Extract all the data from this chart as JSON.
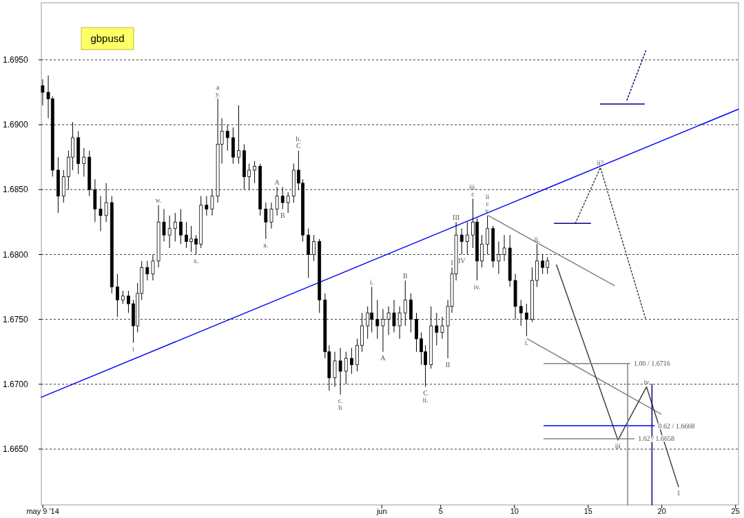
{
  "chart_data": {
    "type": "candlestick",
    "title": "gbpusd",
    "color": "#000000",
    "grid": "y",
    "xlim": [
      -22.1,
      25.2
    ],
    "ylim": [
      1.6607,
      1.6994
    ],
    "xticks": [
      {
        "value": -22,
        "label": "may 9 '14"
      },
      {
        "value": 1,
        "label": "jun"
      },
      5,
      10,
      15,
      20,
      25
    ],
    "yticks": [
      {
        "value": 1.665,
        "label": "1.6650"
      },
      {
        "value": 1.67,
        "label": "1.6700"
      },
      {
        "value": 1.675,
        "label": "1.6750"
      },
      {
        "value": 1.68,
        "label": "1.6800"
      },
      {
        "value": 1.685,
        "label": "1.6850"
      },
      {
        "value": 1.69,
        "label": "1.6900"
      },
      {
        "value": 1.695,
        "label": "1.6950"
      }
    ],
    "x": [
      -22.01,
      -21.63,
      -21.34,
      -20.96,
      -20.59,
      -20.26,
      -19.97,
      -19.59,
      -19.21,
      -18.84,
      -18.46,
      -18.08,
      -17.7,
      -17.32,
      -16.94,
      -16.57,
      -16.19,
      -15.86,
      -15.57,
      -15.29,
      -14.91,
      -14.53,
      -14.15,
      -13.78,
      -13.4,
      -13.02,
      -12.64,
      -12.26,
      -11.93,
      -11.6,
      -11.27,
      -10.89,
      -10.51,
      -10.13,
      -9.85,
      -9.47,
      -9.09,
      -8.71,
      -8.34,
      -8.0,
      -7.63,
      -7.25,
      -6.87,
      -6.49,
      -6.11,
      -5.73,
      -5.36,
      -4.98,
      -4.65,
      -4.36,
      -3.98,
      -3.61,
      -3.23,
      -2.85,
      -2.57,
      -2.19,
      -1.81,
      -1.43,
      -1.05,
      -0.67,
      -0.34,
      0.04,
      0.32,
      0.7,
      1.08,
      1.46,
      1.83,
      2.21,
      2.59,
      2.97,
      3.35,
      3.68,
      3.96,
      4.34,
      4.72,
      5.1,
      5.48,
      5.76,
      6.04,
      6.42,
      6.8,
      7.18,
      7.46,
      7.79,
      8.17,
      8.55,
      8.93,
      9.31,
      9.69,
      10.06,
      10.44,
      10.82,
      11.2,
      11.53,
      11.91,
      12.24
    ],
    "ohlc": [
      [
        1.693,
        1.6935,
        1.6915,
        1.6925
      ],
      [
        1.6925,
        1.6938,
        1.6905,
        1.692
      ],
      [
        1.692,
        1.6922,
        1.686,
        1.6865
      ],
      [
        1.6865,
        1.6875,
        1.6832,
        1.6845
      ],
      [
        1.6845,
        1.6865,
        1.684,
        1.686
      ],
      [
        1.686,
        1.688,
        1.685,
        1.6875
      ],
      [
        1.6875,
        1.6902,
        1.6865,
        1.689
      ],
      [
        1.689,
        1.6895,
        1.6862,
        1.687
      ],
      [
        1.687,
        1.6882,
        1.686,
        1.6875
      ],
      [
        1.6875,
        1.688,
        1.6845,
        1.685
      ],
      [
        1.685,
        1.6858,
        1.6825,
        1.6835
      ],
      [
        1.6835,
        1.6845,
        1.6818,
        1.683
      ],
      [
        1.683,
        1.6855,
        1.6825,
        1.684
      ],
      [
        1.684,
        1.6845,
        1.677,
        1.6775
      ],
      [
        1.6775,
        1.6785,
        1.6752,
        1.6765
      ],
      [
        1.6765,
        1.6772,
        1.6762,
        1.6768
      ],
      [
        1.6768,
        1.6772,
        1.6755,
        1.6762
      ],
      [
        1.6762,
        1.6765,
        1.6732,
        1.6745
      ],
      [
        1.6745,
        1.6778,
        1.674,
        1.677
      ],
      [
        1.677,
        1.6795,
        1.6765,
        1.679
      ],
      [
        1.679,
        1.6795,
        1.678,
        1.6785
      ],
      [
        1.6785,
        1.68,
        1.678,
        1.6795
      ],
      [
        1.6795,
        1.6838,
        1.679,
        1.6825
      ],
      [
        1.6825,
        1.6835,
        1.681,
        1.6815
      ],
      [
        1.6815,
        1.683,
        1.6805,
        1.682
      ],
      [
        1.682,
        1.6832,
        1.681,
        1.6825
      ],
      [
        1.6825,
        1.6835,
        1.6808,
        1.6815
      ],
      [
        1.6815,
        1.6825,
        1.6805,
        1.681
      ],
      [
        1.681,
        1.6822,
        1.6802,
        1.6812
      ],
      [
        1.6812,
        1.6815,
        1.68,
        1.6808
      ],
      [
        1.6808,
        1.6845,
        1.6805,
        1.6838
      ],
      [
        1.6838,
        1.6845,
        1.683,
        1.6835
      ],
      [
        1.6835,
        1.685,
        1.683,
        1.6845
      ],
      [
        1.6845,
        1.692,
        1.684,
        1.6885
      ],
      [
        1.6885,
        1.6905,
        1.687,
        1.6895
      ],
      [
        1.6895,
        1.69,
        1.688,
        1.689
      ],
      [
        1.689,
        1.6898,
        1.687,
        1.6875
      ],
      [
        1.6875,
        1.6915,
        1.687,
        1.688
      ],
      [
        1.688,
        1.6885,
        1.685,
        1.686
      ],
      [
        1.686,
        1.687,
        1.685,
        1.6865
      ],
      [
        1.6865,
        1.6872,
        1.6855,
        1.6868
      ],
      [
        1.6868,
        1.687,
        1.683,
        1.6835
      ],
      [
        1.6835,
        1.684,
        1.6812,
        1.6825
      ],
      [
        1.6825,
        1.684,
        1.682,
        1.6835
      ],
      [
        1.6835,
        1.6852,
        1.683,
        1.6845
      ],
      [
        1.6845,
        1.6852,
        1.6835,
        1.684
      ],
      [
        1.684,
        1.6848,
        1.6832,
        1.6845
      ],
      [
        1.6845,
        1.687,
        1.684,
        1.6865
      ],
      [
        1.6865,
        1.688,
        1.685,
        1.6855
      ],
      [
        1.6855,
        1.6858,
        1.681,
        1.6815
      ],
      [
        1.6815,
        1.682,
        1.6782,
        1.68
      ],
      [
        1.68,
        1.6815,
        1.6795,
        1.681
      ],
      [
        1.681,
        1.6812,
        1.6755,
        1.6765
      ],
      [
        1.6765,
        1.677,
        1.672,
        1.6725
      ],
      [
        1.6725,
        1.673,
        1.6695,
        1.6705
      ],
      [
        1.6705,
        1.6725,
        1.6698,
        1.6718
      ],
      [
        1.6718,
        1.6728,
        1.6692,
        1.671
      ],
      [
        1.671,
        1.6725,
        1.67,
        1.672
      ],
      [
        1.672,
        1.6728,
        1.6708,
        1.6715
      ],
      [
        1.6715,
        1.6735,
        1.671,
        1.673
      ],
      [
        1.673,
        1.6755,
        1.6725,
        1.6745
      ],
      [
        1.6745,
        1.676,
        1.6735,
        1.6755
      ],
      [
        1.6755,
        1.6775,
        1.674,
        1.675
      ],
      [
        1.675,
        1.6765,
        1.6735,
        1.6745
      ],
      [
        1.6745,
        1.6758,
        1.6725,
        1.675
      ],
      [
        1.675,
        1.676,
        1.6738,
        1.6755
      ],
      [
        1.6755,
        1.6765,
        1.674,
        1.6745
      ],
      [
        1.6745,
        1.676,
        1.6735,
        1.6755
      ],
      [
        1.6755,
        1.678,
        1.6745,
        1.6765
      ],
      [
        1.6765,
        1.677,
        1.674,
        1.675
      ],
      [
        1.675,
        1.6755,
        1.6725,
        1.6735
      ],
      [
        1.6735,
        1.674,
        1.6715,
        1.6725
      ],
      [
        1.6725,
        1.673,
        1.6698,
        1.6715
      ],
      [
        1.6715,
        1.676,
        1.6712,
        1.6745
      ],
      [
        1.6745,
        1.6755,
        1.673,
        1.674
      ],
      [
        1.674,
        1.6752,
        1.6735,
        1.6745
      ],
      [
        1.6745,
        1.6765,
        1.672,
        1.676
      ],
      [
        1.676,
        1.679,
        1.6755,
        1.6785
      ],
      [
        1.6785,
        1.6825,
        1.678,
        1.6815
      ],
      [
        1.6815,
        1.682,
        1.68,
        1.681
      ],
      [
        1.681,
        1.6825,
        1.68,
        1.6815
      ],
      [
        1.6815,
        1.6843,
        1.6805,
        1.6825
      ],
      [
        1.6825,
        1.6828,
        1.678,
        1.6795
      ],
      [
        1.6795,
        1.6815,
        1.679,
        1.6808
      ],
      [
        1.6808,
        1.683,
        1.68,
        1.682
      ],
      [
        1.682,
        1.6822,
        1.679,
        1.6795
      ],
      [
        1.6795,
        1.681,
        1.6785,
        1.68
      ],
      [
        1.68,
        1.6815,
        1.6795,
        1.6805
      ],
      [
        1.6805,
        1.6815,
        1.6775,
        1.678
      ],
      [
        1.678,
        1.6785,
        1.675,
        1.676
      ],
      [
        1.676,
        1.6765,
        1.6745,
        1.6755
      ],
      [
        1.6755,
        1.6762,
        1.6737,
        1.675
      ],
      [
        1.675,
        1.679,
        1.6748,
        1.678
      ],
      [
        1.678,
        1.6808,
        1.6775,
        1.6795
      ],
      [
        1.6795,
        1.68,
        1.6785,
        1.679
      ],
      [
        1.679,
        1.6798,
        1.6785,
        1.6795
      ]
    ],
    "series": [
      {
        "type": "line",
        "color": "#0000ff",
        "line_style": "solid",
        "x": [
          -22.1,
          25.2
        ],
        "values": [
          1.669,
          1.6912
        ]
      },
      {
        "type": "line",
        "color": "#808080",
        "line_style": "solid",
        "x": [
          8.22,
          16.78
        ],
        "values": [
          1.683,
          1.6776
        ]
      },
      {
        "type": "line",
        "color": "#808080",
        "line_style": "solid",
        "x": [
          10.87,
          19.95
        ],
        "values": [
          1.6735,
          1.6677
        ]
      },
      {
        "type": "line",
        "color": "#404040",
        "line_style": "solid",
        "x": [
          12.85,
          17.02,
          18.96,
          21.13
        ],
        "values": [
          1.6792,
          1.6657,
          1.6698,
          1.6621
        ]
      },
      {
        "type": "line",
        "color": "#404040",
        "line_style": "dotted",
        "x": [
          14.13,
          15.83,
          18.91
        ],
        "values": [
          1.6824,
          1.6867,
          1.675
        ]
      },
      {
        "type": "line",
        "color": "#000080",
        "line_style": "dotted",
        "x": [
          17.63,
          18.91
        ],
        "values": [
          1.6919,
          1.6957
        ]
      },
      {
        "type": "line",
        "color": "#000080",
        "line_style": "solid",
        "x": [
          12.71,
          15.17
        ],
        "values": [
          1.6824,
          1.6824
        ]
      },
      {
        "type": "line",
        "color": "#000080",
        "line_style": "solid",
        "x": [
          15.83,
          18.81
        ],
        "values": [
          1.6916,
          1.6916
        ]
      },
      {
        "type": "line",
        "color": "#808080",
        "line_style": "solid",
        "x": [
          12.0,
          17.82
        ],
        "values": [
          1.6716,
          1.6716
        ]
      },
      {
        "type": "line",
        "color": "#0000ff",
        "line_style": "solid",
        "x": [
          12.0,
          19.48
        ],
        "values": [
          1.6668,
          1.6668
        ]
      },
      {
        "type": "line",
        "color": "#808080",
        "line_style": "solid",
        "x": [
          12.0,
          18.11
        ],
        "values": [
          1.6658,
          1.6658
        ]
      },
      {
        "type": "line",
        "color": "#808080",
        "line_style": "solid",
        "x": [
          17.68,
          17.68
        ],
        "values": [
          1.6607,
          1.6716
        ]
      },
      {
        "type": "line",
        "color": "#000080",
        "line_style": "solid",
        "x": [
          19.33,
          19.33
        ],
        "values": [
          1.6607,
          1.67
        ]
      }
    ],
    "annotations": [
      {
        "text": "y.",
        "x": -10.13,
        "y": 1.692
      },
      {
        "text": "a",
        "x": -10.13,
        "y": 1.692
      },
      {
        "text": "C",
        "x": -4.65,
        "y": 1.688
      },
      {
        "text": "b.",
        "x": -4.65,
        "y": 1.688
      },
      {
        "text": "w.",
        "x": -14.15,
        "y": 1.6838
      },
      {
        "text": "x.",
        "x": -11.6,
        "y": 1.68
      },
      {
        "text": "A",
        "x": -6.11,
        "y": 1.6852
      },
      {
        "text": "B",
        "x": -5.73,
        "y": 1.6835
      },
      {
        "text": "a.",
        "x": -6.87,
        "y": 1.6812
      },
      {
        "text": "i",
        "x": -15.86,
        "y": 1.6732
      },
      {
        "text": "i.",
        "x": 0.32,
        "y": 1.6775
      },
      {
        "text": "B",
        "x": 2.59,
        "y": 1.678
      },
      {
        "text": "A",
        "x": 1.08,
        "y": 1.6725
      },
      {
        "text": "c.",
        "x": -1.81,
        "y": 1.6692
      },
      {
        "text": "b",
        "x": -1.81,
        "y": 1.6692
      },
      {
        "text": "C",
        "x": 3.96,
        "y": 1.6698
      },
      {
        "text": "ii.",
        "x": 3.96,
        "y": 1.6698
      },
      {
        "text": "I",
        "x": 5.76,
        "y": 1.679
      },
      {
        "text": "II",
        "x": 5.48,
        "y": 1.672
      },
      {
        "text": "III",
        "x": 6.04,
        "y": 1.6825
      },
      {
        "text": "IV",
        "x": 6.42,
        "y": 1.68
      },
      {
        "text": "c",
        "x": 7.18,
        "y": 1.6843
      },
      {
        "text": "iii.",
        "x": 7.18,
        "y": 1.6843
      },
      {
        "text": "v.",
        "x": 8.17,
        "y": 1.683
      },
      {
        "text": "c",
        "x": 8.17,
        "y": 1.683
      },
      {
        "text": "ii",
        "x": 8.17,
        "y": 1.683
      },
      {
        "text": "iv.",
        "x": 7.46,
        "y": 1.678
      },
      {
        "text": "ii.",
        "x": 11.53,
        "y": 1.6808
      },
      {
        "text": "i.",
        "x": 10.82,
        "y": 1.6737
      },
      {
        "text": "ii?",
        "x": 15.83,
        "y": 1.6867
      },
      {
        "text": "iv",
        "x": 18.96,
        "y": 1.6698
      },
      {
        "text": "iii",
        "x": 17.02,
        "y": 1.6657
      },
      {
        "text": "1",
        "x": 21.13,
        "y": 1.6621
      },
      {
        "text": "1.00 / 1.6716",
        "x": 17.82,
        "y": 1.6716
      },
      {
        "text": "0.62 / 1.6668",
        "x": 19.48,
        "y": 1.6668
      },
      {
        "text": "1.62 / 1.6658",
        "x": 18.11,
        "y": 1.6658
      }
    ]
  }
}
